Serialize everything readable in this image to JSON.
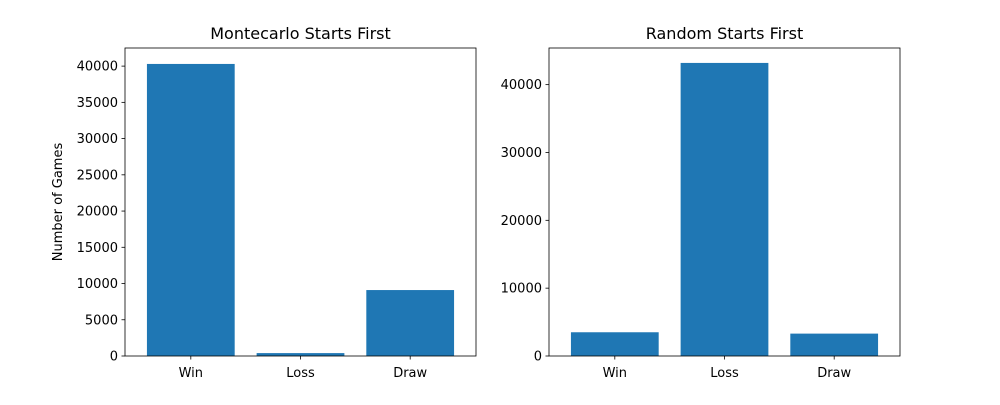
{
  "chart_data": [
    {
      "type": "bar",
      "title": "Montecarlo Starts First",
      "xlabel": "",
      "ylabel": "Number of Games",
      "categories": [
        "Win",
        "Loss",
        "Draw"
      ],
      "values": [
        40300,
        400,
        9100
      ],
      "ylim": [
        0,
        42500
      ],
      "yticks": [
        0,
        5000,
        10000,
        15000,
        20000,
        25000,
        30000,
        35000,
        40000
      ],
      "bar_color": "#1f77b4",
      "grid": false
    },
    {
      "type": "bar",
      "title": "Random Starts First",
      "xlabel": "",
      "ylabel": "",
      "categories": [
        "Win",
        "Loss",
        "Draw"
      ],
      "values": [
        3500,
        43200,
        3300
      ],
      "ylim": [
        0,
        45400
      ],
      "yticks": [
        0,
        10000,
        20000,
        30000,
        40000
      ],
      "bar_color": "#1f77b4",
      "grid": false
    }
  ]
}
